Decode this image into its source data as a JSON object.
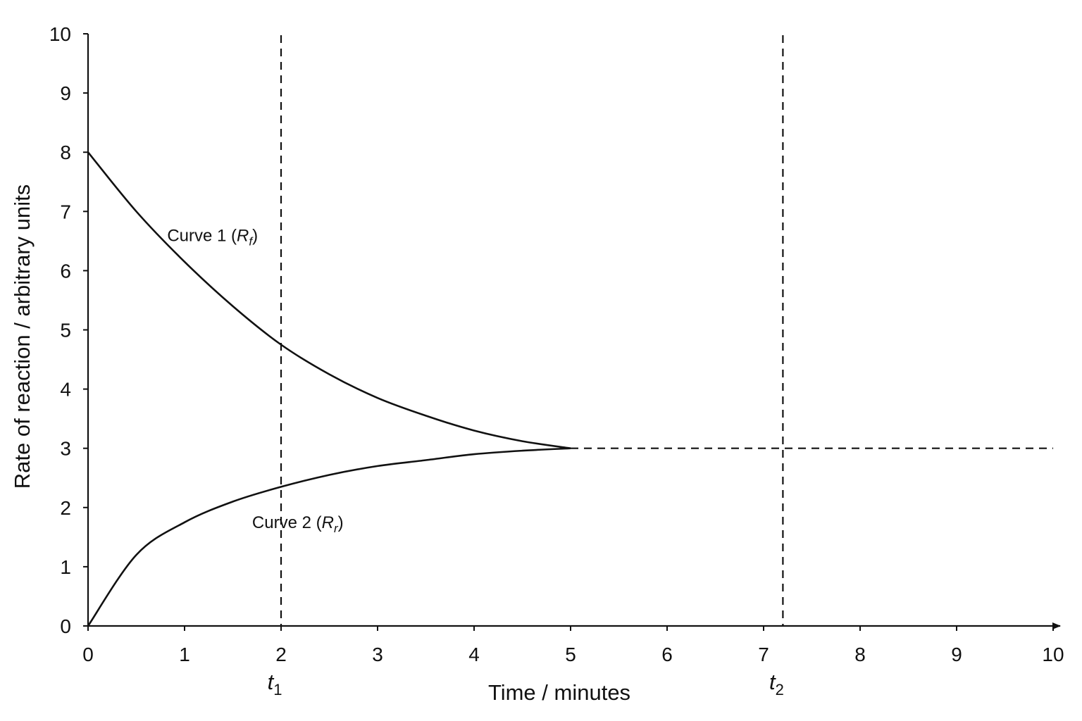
{
  "chart_data": {
    "type": "line",
    "xlabel": "Time / minutes",
    "ylabel": "Rate of reaction / arbitrary units",
    "xlim": [
      0,
      10
    ],
    "ylim": [
      0,
      10
    ],
    "xticks": [
      0,
      1,
      2,
      3,
      4,
      5,
      6,
      7,
      8,
      9,
      10
    ],
    "yticks": [
      0,
      1,
      2,
      3,
      4,
      5,
      6,
      7,
      8,
      9,
      10
    ],
    "grid": false,
    "series": [
      {
        "name": "Curve 1 (Rf)",
        "label_main": "Curve 1 (",
        "label_symbol": "R",
        "label_subscript": "f",
        "label_close": ")",
        "x": [
          0,
          0.5,
          1,
          1.5,
          2,
          2.5,
          3,
          3.5,
          4,
          4.5,
          5
        ],
        "y": [
          8.0,
          7.0,
          6.15,
          5.4,
          4.75,
          4.25,
          3.85,
          3.55,
          3.3,
          3.12,
          3.0
        ]
      },
      {
        "name": "Curve 2 (Rr)",
        "label_main": "Curve 2 (",
        "label_symbol": "R",
        "label_subscript": "r",
        "label_close": ")",
        "x": [
          0,
          0.5,
          1,
          1.5,
          2,
          2.5,
          3,
          3.5,
          4,
          4.5,
          5
        ],
        "y": [
          0.0,
          1.2,
          1.75,
          2.1,
          2.35,
          2.55,
          2.7,
          2.8,
          2.9,
          2.96,
          3.0
        ]
      }
    ],
    "equilibrium_line": {
      "y": 3,
      "x_start": 5,
      "x_end": 10
    },
    "vertical_markers": [
      {
        "label": "t",
        "subscript": "1",
        "x": 2.0
      },
      {
        "label": "t",
        "subscript": "2",
        "x": 7.2
      }
    ]
  }
}
